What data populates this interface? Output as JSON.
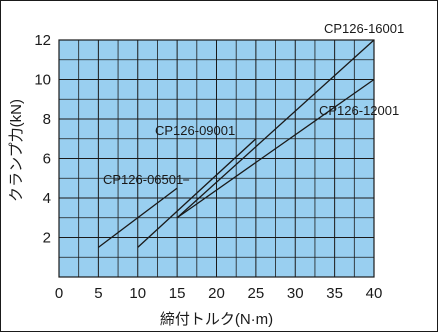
{
  "chart_data": {
    "type": "line",
    "xlabel": "締付トルク(N·m)",
    "ylabel": "クランプ力(kN)",
    "xlim": [
      0,
      40
    ],
    "ylim": [
      0,
      12
    ],
    "x_ticks": [
      0,
      5,
      10,
      15,
      20,
      25,
      30,
      35,
      40
    ],
    "y_ticks": [
      2,
      4,
      6,
      8,
      10,
      12
    ],
    "x_tick_labels": [
      "0",
      "5",
      "10",
      "15",
      "20",
      "25",
      "30",
      "35",
      "40"
    ],
    "y_tick_labels": [
      "2",
      "4",
      "6",
      "8",
      "10",
      "12"
    ],
    "minor_grid": true,
    "colors": {
      "plot_background": "#99cff0",
      "grid": "#1a1a1a",
      "line": "#1a1a1a"
    },
    "series": [
      {
        "name": "CP126-06501",
        "x": [
          5,
          15
        ],
        "y": [
          1.5,
          4.5
        ]
      },
      {
        "name": "CP126-09001",
        "x": [
          10,
          25
        ],
        "y": [
          1.5,
          7.0
        ]
      },
      {
        "name": "CP126-16001",
        "x": [
          15,
          40
        ],
        "y": [
          3.0,
          12.0
        ]
      },
      {
        "name": "CP126-12001",
        "x": [
          15,
          40
        ],
        "y": [
          3.0,
          10.0
        ]
      }
    ]
  }
}
